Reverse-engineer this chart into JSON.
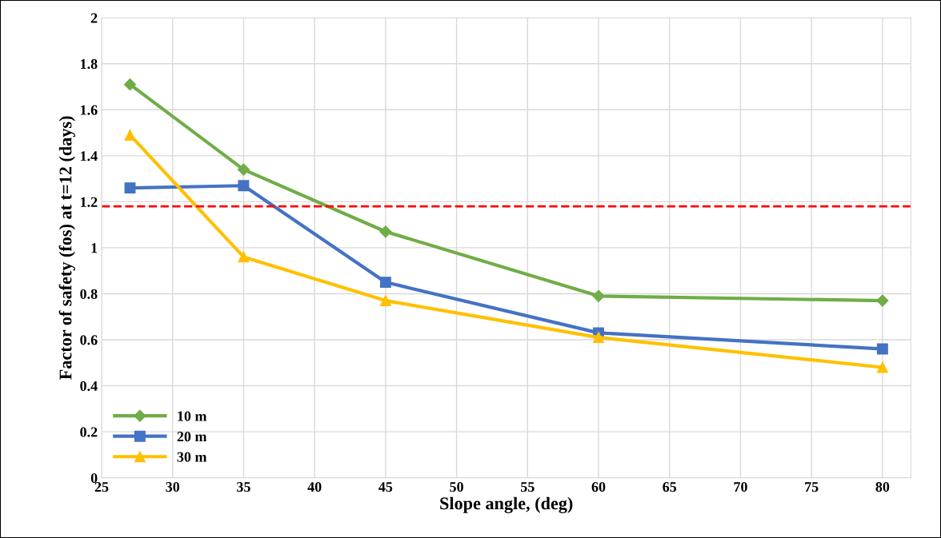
{
  "chart_data": {
    "type": "line",
    "xlabel": "Slope angle, (deg)",
    "ylabel": "Factor of safety (fos) at t=12 (days)",
    "x": [
      27,
      35,
      45,
      60,
      80
    ],
    "series": [
      {
        "name": "10 m",
        "color": "#70ad47",
        "marker": "diamond",
        "values": [
          1.71,
          1.34,
          1.07,
          0.79,
          0.77
        ]
      },
      {
        "name": "20 m",
        "color": "#4472c4",
        "marker": "square",
        "values": [
          1.26,
          1.27,
          0.85,
          0.63,
          0.56
        ]
      },
      {
        "name": "30 m",
        "color": "#ffc000",
        "marker": "triangle",
        "values": [
          1.49,
          0.96,
          0.77,
          0.61,
          0.48
        ]
      }
    ],
    "xlim": [
      25,
      82
    ],
    "xticks": [
      25,
      30,
      35,
      40,
      45,
      50,
      55,
      60,
      65,
      70,
      75,
      80
    ],
    "ylim": [
      0,
      2
    ],
    "yticks": [
      0,
      {
        "value": 0.2,
        "label": "0.2"
      },
      {
        "value": 0.4,
        "label": "0.4"
      },
      {
        "value": 0.6,
        "label": "0.6"
      },
      {
        "value": 0.8,
        "label": "0.8"
      },
      1,
      {
        "value": 1.2,
        "label": "1.2"
      },
      {
        "value": 1.4,
        "label": "1.4"
      },
      {
        "value": 1.6,
        "label": "1.6"
      },
      {
        "value": 1.8,
        "label": "1.8"
      },
      2
    ],
    "ref_lines": [
      {
        "axis": "y",
        "value": 1.18,
        "color": "#ff0000",
        "line_style": "dashed"
      }
    ],
    "grid": true,
    "legend": "bottom left",
    "line_style": "solid"
  }
}
